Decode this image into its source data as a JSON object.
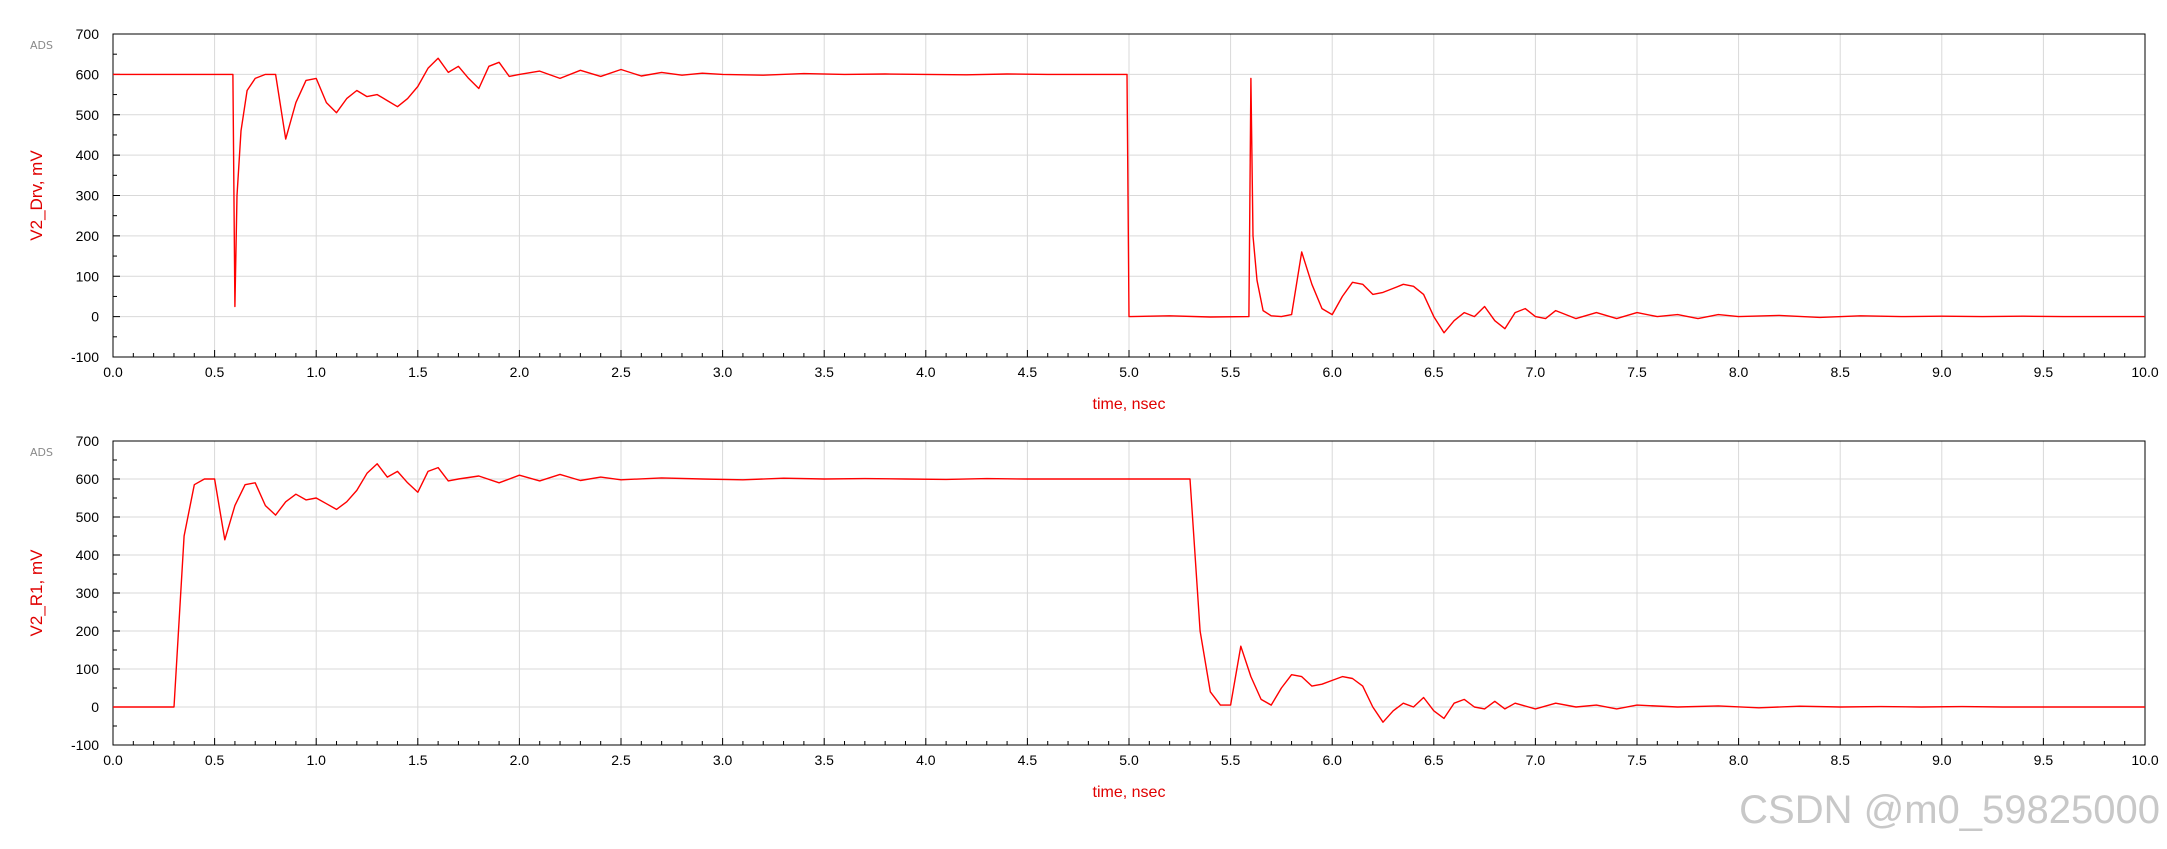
{
  "watermark": "CSDN @m0_59825000",
  "colors": {
    "trace": "#ff0000",
    "grid": "#d9d9d9",
    "label": "#e00000"
  },
  "chart_data": [
    {
      "type": "line",
      "badge": "ADS",
      "xlabel": "time, nsec",
      "ylabel": "V2_Drv, mV",
      "xlim": [
        0,
        10
      ],
      "ylim": [
        -100,
        700
      ],
      "xticks": [
        "0.0",
        "0.5",
        "1.0",
        "1.5",
        "2.0",
        "2.5",
        "3.0",
        "3.5",
        "4.0",
        "4.5",
        "5.0",
        "5.5",
        "6.0",
        "6.5",
        "7.0",
        "7.5",
        "8.0",
        "8.5",
        "9.0",
        "9.5",
        "10.0"
      ],
      "yticks": [
        "-100",
        "0",
        "100",
        "200",
        "300",
        "400",
        "500",
        "600",
        "700"
      ],
      "grid": true,
      "series": [
        {
          "x": [
            0,
            0.59,
            0.6,
            0.61,
            0.63,
            0.66,
            0.7,
            0.75,
            0.8,
            0.85,
            0.9,
            0.95,
            1.0,
            1.05,
            1.1,
            1.15,
            1.2,
            1.25,
            1.3,
            1.35,
            1.4,
            1.45,
            1.5,
            1.55,
            1.6,
            1.65,
            1.7,
            1.75,
            1.8,
            1.85,
            1.9,
            1.95,
            2.0,
            2.1,
            2.2,
            2.3,
            2.4,
            2.5,
            2.6,
            2.7,
            2.8,
            2.9,
            3.0,
            3.2,
            3.4,
            3.6,
            3.8,
            4.0,
            4.2,
            4.4,
            4.6,
            4.8,
            4.99,
            5.0,
            5.01,
            5.2,
            5.4,
            5.59,
            5.6,
            5.61,
            5.63,
            5.66,
            5.7,
            5.75,
            5.8,
            5.85,
            5.9,
            5.95,
            6.0,
            6.05,
            6.1,
            6.15,
            6.2,
            6.25,
            6.3,
            6.35,
            6.4,
            6.45,
            6.5,
            6.55,
            6.6,
            6.65,
            6.7,
            6.75,
            6.8,
            6.85,
            6.9,
            6.95,
            7.0,
            7.05,
            7.1,
            7.2,
            7.3,
            7.4,
            7.5,
            7.6,
            7.7,
            7.8,
            7.9,
            8.0,
            8.2,
            8.4,
            8.6,
            8.8,
            9.0,
            9.2,
            9.4,
            9.6,
            9.8,
            10.0
          ],
          "y": [
            600,
            600,
            25,
            300,
            460,
            560,
            590,
            600,
            600,
            440,
            530,
            585,
            590,
            530,
            505,
            540,
            560,
            545,
            550,
            535,
            520,
            540,
            570,
            615,
            640,
            605,
            620,
            590,
            565,
            620,
            630,
            595,
            600,
            608,
            590,
            610,
            595,
            612,
            596,
            605,
            598,
            603,
            600,
            598,
            602,
            600,
            601,
            600,
            599,
            601,
            600,
            600,
            600,
            0,
            0,
            2,
            -1,
            0,
            590,
            200,
            90,
            15,
            2,
            0,
            5,
            160,
            80,
            20,
            5,
            50,
            85,
            80,
            55,
            60,
            70,
            80,
            75,
            55,
            0,
            -40,
            -10,
            10,
            0,
            25,
            -10,
            -30,
            10,
            20,
            0,
            -5,
            15,
            -5,
            10,
            -5,
            10,
            0,
            5,
            -5,
            5,
            0,
            3,
            -2,
            2,
            0,
            1,
            0,
            1,
            0,
            0,
            0
          ]
        }
      ]
    },
    {
      "type": "line",
      "badge": "ADS",
      "xlabel": "time, nsec",
      "ylabel": "V2_R1, mV",
      "xlim": [
        0,
        10
      ],
      "ylim": [
        -100,
        700
      ],
      "xticks": [
        "0.0",
        "0.5",
        "1.0",
        "1.5",
        "2.0",
        "2.5",
        "3.0",
        "3.5",
        "4.0",
        "4.5",
        "5.0",
        "5.5",
        "6.0",
        "6.5",
        "7.0",
        "7.5",
        "8.0",
        "8.5",
        "9.0",
        "9.5",
        "10.0"
      ],
      "yticks": [
        "-100",
        "0",
        "100",
        "200",
        "300",
        "400",
        "500",
        "600",
        "700"
      ],
      "grid": true,
      "series": [
        {
          "x": [
            0,
            0.3,
            0.35,
            0.4,
            0.45,
            0.5,
            0.55,
            0.6,
            0.65,
            0.7,
            0.75,
            0.8,
            0.85,
            0.9,
            0.95,
            1.0,
            1.05,
            1.1,
            1.15,
            1.2,
            1.25,
            1.3,
            1.35,
            1.4,
            1.45,
            1.5,
            1.55,
            1.6,
            1.65,
            1.7,
            1.8,
            1.9,
            2.0,
            2.1,
            2.2,
            2.3,
            2.4,
            2.5,
            2.7,
            2.9,
            3.1,
            3.3,
            3.5,
            3.7,
            3.9,
            4.1,
            4.3,
            4.5,
            4.7,
            4.9,
            5.1,
            5.3,
            5.35,
            5.4,
            5.45,
            5.5,
            5.55,
            5.6,
            5.65,
            5.7,
            5.75,
            5.8,
            5.85,
            5.9,
            5.95,
            6.0,
            6.05,
            6.1,
            6.15,
            6.2,
            6.25,
            6.3,
            6.35,
            6.4,
            6.45,
            6.5,
            6.55,
            6.6,
            6.65,
            6.7,
            6.75,
            6.8,
            6.85,
            6.9,
            7.0,
            7.1,
            7.2,
            7.3,
            7.4,
            7.5,
            7.7,
            7.9,
            8.1,
            8.3,
            8.5,
            8.7,
            8.9,
            9.1,
            9.3,
            9.5,
            9.7,
            10.0
          ],
          "y": [
            0,
            0,
            450,
            585,
            600,
            600,
            440,
            530,
            585,
            590,
            530,
            505,
            540,
            560,
            545,
            550,
            535,
            520,
            540,
            570,
            615,
            640,
            605,
            620,
            590,
            565,
            620,
            630,
            595,
            600,
            608,
            590,
            610,
            595,
            612,
            596,
            605,
            598,
            603,
            600,
            598,
            602,
            600,
            601,
            600,
            599,
            601,
            600,
            600,
            600,
            600,
            600,
            200,
            40,
            5,
            5,
            160,
            80,
            20,
            5,
            50,
            85,
            80,
            55,
            60,
            70,
            80,
            75,
            55,
            0,
            -40,
            -10,
            10,
            0,
            25,
            -10,
            -30,
            10,
            20,
            0,
            -5,
            15,
            -5,
            10,
            -5,
            10,
            0,
            5,
            -5,
            5,
            0,
            3,
            -2,
            2,
            0,
            1,
            0,
            1,
            0,
            0,
            0,
            0
          ]
        }
      ]
    }
  ]
}
